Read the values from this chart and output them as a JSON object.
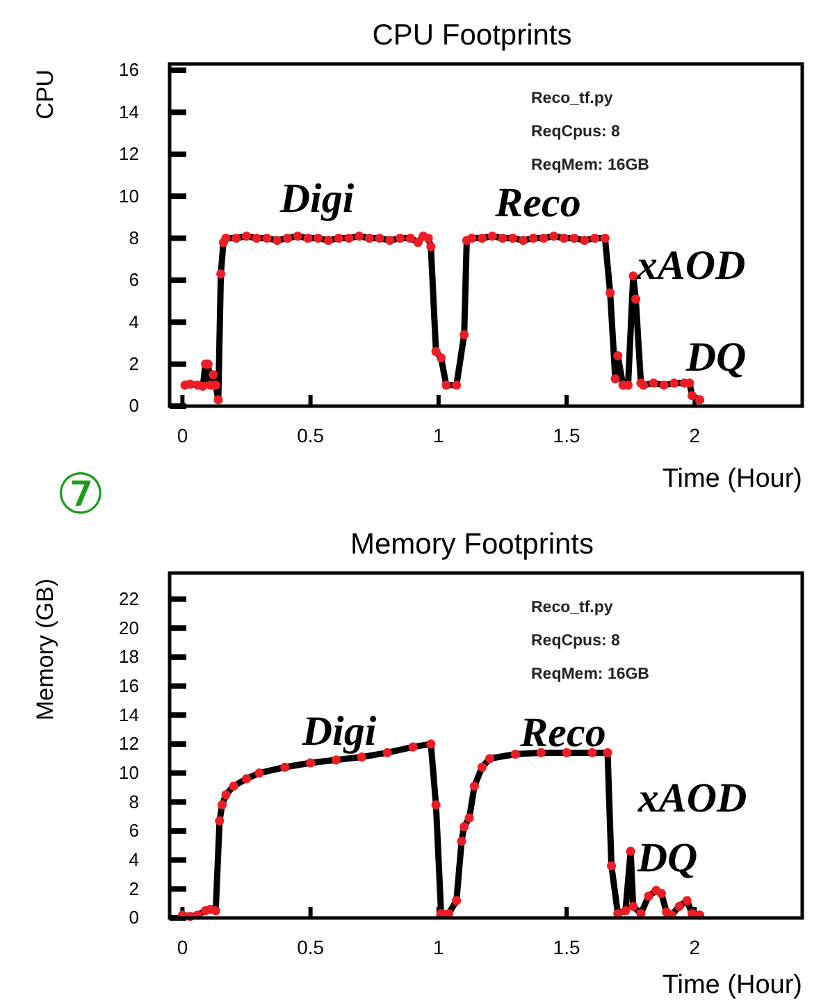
{
  "chart_data": [
    {
      "type": "line",
      "title": "CPU Footprints",
      "xlabel": "Time (Hour)",
      "ylabel": "CPU",
      "xlim": [
        -0.05,
        2.42
      ],
      "xticks": [
        0,
        0.5,
        1,
        1.5,
        2
      ],
      "ylim": [
        0,
        16.3
      ],
      "yticks": [
        0,
        2,
        4,
        6,
        8,
        10,
        12,
        14,
        16
      ],
      "grid": false,
      "line_style": "solid",
      "series": [
        {
          "color": "#000000",
          "marker": "none",
          "x": [
            0.01,
            0.03,
            0.06,
            0.08,
            0.09,
            0.1,
            0.11,
            0.12,
            0.13,
            0.14,
            0.15,
            0.16,
            0.17,
            0.21,
            0.25,
            0.29,
            0.33,
            0.37,
            0.41,
            0.45,
            0.49,
            0.53,
            0.57,
            0.61,
            0.65,
            0.69,
            0.73,
            0.77,
            0.81,
            0.85,
            0.89,
            0.92,
            0.94,
            0.96,
            0.97,
            0.99,
            1.01,
            1.03,
            1.07,
            1.1,
            1.11,
            1.13,
            1.17,
            1.21,
            1.25,
            1.29,
            1.33,
            1.37,
            1.41,
            1.45,
            1.49,
            1.53,
            1.57,
            1.61,
            1.65,
            1.67,
            1.69,
            1.7,
            1.72,
            1.74,
            1.76,
            1.77,
            1.79,
            1.8,
            1.84,
            1.88,
            1.92,
            1.96,
            1.98,
            1.99,
            2.02
          ],
          "values": [
            1,
            1.05,
            1,
            0.95,
            2,
            2,
            1,
            1.5,
            1,
            0.3,
            6.3,
            7.8,
            8,
            8,
            8.1,
            8,
            8,
            7.9,
            8,
            8.1,
            8,
            8,
            7.9,
            8,
            8,
            8.1,
            8,
            8,
            7.9,
            8,
            8,
            7.8,
            8.1,
            8,
            7.6,
            2.6,
            2.3,
            1,
            1,
            3.4,
            7.9,
            8,
            8,
            8.1,
            8,
            8,
            7.9,
            8,
            8,
            8.1,
            8,
            8,
            7.9,
            8,
            8,
            5.4,
            1.3,
            2.4,
            1,
            1,
            6.2,
            5.1,
            1.1,
            1,
            1.1,
            1,
            1.1,
            1.1,
            1.1,
            0.5,
            0.3
          ]
        },
        {
          "type": "scatter",
          "color": "#ee1c24",
          "marker": "circle",
          "x": [
            0.01,
            0.03,
            0.06,
            0.08,
            0.09,
            0.1,
            0.11,
            0.12,
            0.13,
            0.14,
            0.15,
            0.16,
            0.17,
            0.21,
            0.25,
            0.29,
            0.33,
            0.37,
            0.41,
            0.45,
            0.49,
            0.53,
            0.57,
            0.61,
            0.65,
            0.69,
            0.73,
            0.77,
            0.81,
            0.85,
            0.89,
            0.92,
            0.94,
            0.96,
            0.97,
            0.99,
            1.01,
            1.03,
            1.07,
            1.1,
            1.11,
            1.13,
            1.17,
            1.21,
            1.25,
            1.29,
            1.33,
            1.37,
            1.41,
            1.45,
            1.49,
            1.53,
            1.57,
            1.61,
            1.65,
            1.67,
            1.69,
            1.7,
            1.72,
            1.74,
            1.76,
            1.77,
            1.79,
            1.8,
            1.84,
            1.88,
            1.92,
            1.96,
            1.98,
            1.99,
            2.02
          ],
          "values": [
            1,
            1.05,
            1,
            0.95,
            2,
            2,
            1,
            1.5,
            1,
            0.3,
            6.3,
            7.8,
            8,
            8,
            8.1,
            8,
            8,
            7.9,
            8,
            8.1,
            8,
            8,
            7.9,
            8,
            8,
            8.1,
            8,
            8,
            7.9,
            8,
            8,
            7.8,
            8.1,
            8,
            7.6,
            2.6,
            2.3,
            1,
            1,
            3.4,
            7.9,
            8,
            8,
            8.1,
            8,
            8,
            7.9,
            8,
            8,
            8.1,
            8,
            8,
            7.9,
            8,
            8,
            5.4,
            1.3,
            2.4,
            1,
            1,
            6.2,
            5.1,
            1.1,
            1,
            1.1,
            1,
            1.1,
            1.1,
            1.1,
            0.5,
            0.3
          ]
        }
      ],
      "annotations": [
        "Digi",
        "Reco",
        "xAOD",
        "DQ",
        "Reco_tf.py",
        "ReqCpus: 8",
        "ReqMem: 16GB",
        "⑦"
      ]
    },
    {
      "type": "line",
      "title": "Memory Footprints",
      "xlabel": "Time  (Hour)",
      "ylabel": "Memory (GB)",
      "xlim": [
        -0.05,
        2.42
      ],
      "xticks": [
        0,
        0.5,
        1,
        1.5,
        2
      ],
      "ylim": [
        0,
        23.8
      ],
      "yticks": [
        0,
        2,
        4,
        6,
        8,
        10,
        12,
        14,
        16,
        18,
        20,
        22
      ],
      "grid": false,
      "line_style": "solid",
      "series": [
        {
          "color": "#000000",
          "marker": "none",
          "x": [
            0,
            0.03,
            0.06,
            0.09,
            0.11,
            0.13,
            0.145,
            0.155,
            0.17,
            0.2,
            0.25,
            0.3,
            0.4,
            0.5,
            0.6,
            0.7,
            0.8,
            0.9,
            0.97,
            0.99,
            1.01,
            1.04,
            1.07,
            1.09,
            1.1,
            1.12,
            1.14,
            1.17,
            1.2,
            1.3,
            1.4,
            1.5,
            1.6,
            1.66,
            1.675,
            1.7,
            1.73,
            1.75,
            1.76,
            1.79,
            1.82,
            1.85,
            1.87,
            1.89,
            1.91,
            1.94,
            1.97,
            1.99,
            2.02
          ],
          "values": [
            0.2,
            0.1,
            0.2,
            0.5,
            0.6,
            0.5,
            6.7,
            7.8,
            8.5,
            9.1,
            9.6,
            10,
            10.4,
            10.7,
            10.9,
            11.1,
            11.4,
            11.8,
            12,
            7.8,
            0.3,
            0.3,
            1.2,
            5.3,
            6.3,
            6.9,
            9.1,
            10.4,
            11,
            11.3,
            11.4,
            11.4,
            11.4,
            11.4,
            3.6,
            0.3,
            0.5,
            4.6,
            0.8,
            0.3,
            1.5,
            1.9,
            1.7,
            0.4,
            0.2,
            0.8,
            1.2,
            0.3,
            0.2
          ]
        },
        {
          "type": "scatter",
          "color": "#ee1c24",
          "marker": "circle",
          "x": [
            0,
            0.03,
            0.06,
            0.09,
            0.11,
            0.13,
            0.145,
            0.155,
            0.17,
            0.2,
            0.25,
            0.3,
            0.4,
            0.5,
            0.6,
            0.7,
            0.8,
            0.9,
            0.97,
            0.99,
            1.01,
            1.04,
            1.07,
            1.09,
            1.1,
            1.12,
            1.14,
            1.17,
            1.2,
            1.3,
            1.4,
            1.5,
            1.6,
            1.66,
            1.675,
            1.7,
            1.73,
            1.75,
            1.76,
            1.79,
            1.82,
            1.85,
            1.87,
            1.89,
            1.91,
            1.94,
            1.97,
            1.99,
            2.02
          ],
          "values": [
            0.2,
            0.1,
            0.2,
            0.5,
            0.6,
            0.5,
            6.7,
            7.8,
            8.5,
            9.1,
            9.6,
            10,
            10.4,
            10.7,
            10.9,
            11.1,
            11.4,
            11.8,
            12,
            7.8,
            0.3,
            0.3,
            1.2,
            5.3,
            6.3,
            6.9,
            9.1,
            10.4,
            11,
            11.3,
            11.4,
            11.4,
            11.4,
            11.4,
            3.6,
            0.3,
            0.5,
            4.6,
            0.8,
            0.3,
            1.5,
            1.9,
            1.7,
            0.4,
            0.2,
            0.8,
            1.2,
            0.3,
            0.2
          ]
        }
      ],
      "annotations": [
        "Digi",
        "Reco",
        "xAOD",
        "DQ",
        "Reco_tf.py",
        "ReqCpus: 8",
        "ReqMem: 16GB"
      ]
    }
  ]
}
